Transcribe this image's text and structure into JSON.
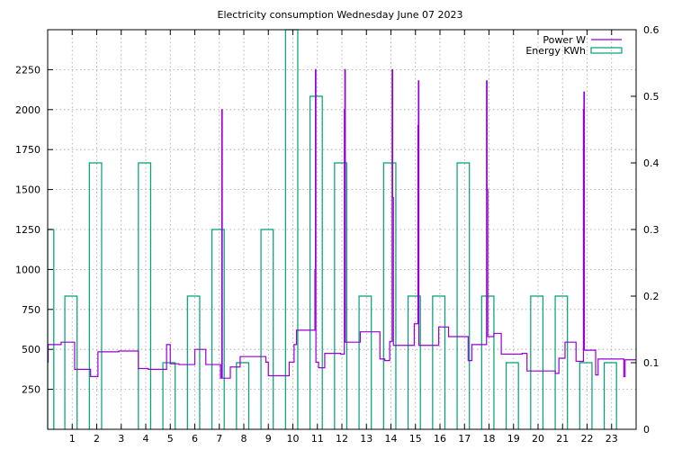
{
  "chart_data": {
    "type": "line",
    "title": "Electricity consumption Wednesday June 07 2023",
    "xlabel": "",
    "ylabel": "",
    "y2label": "",
    "xlim": [
      0,
      24
    ],
    "ylim": [
      0,
      2500
    ],
    "y2lim": [
      0,
      0.6
    ],
    "grid": true,
    "legend_position": "top-right",
    "x_ticks": [
      1,
      2,
      3,
      4,
      5,
      6,
      7,
      8,
      9,
      10,
      11,
      12,
      13,
      14,
      15,
      16,
      17,
      18,
      19,
      20,
      21,
      22,
      23
    ],
    "y_ticks": [
      250,
      500,
      750,
      1000,
      1250,
      1500,
      1750,
      2000,
      2250
    ],
    "y2_ticks": [
      0,
      0.1,
      0.2,
      0.3,
      0.4,
      0.5,
      0.6
    ],
    "series": [
      {
        "name": "Power W",
        "color": "#9400d3",
        "axis": "y",
        "style": "steps",
        "points": [
          [
            0.0,
            420
          ],
          [
            0.02,
            530
          ],
          [
            0.55,
            545
          ],
          [
            1.1,
            375
          ],
          [
            1.75,
            330
          ],
          [
            2.05,
            485
          ],
          [
            2.9,
            490
          ],
          [
            3.7,
            380
          ],
          [
            4.1,
            375
          ],
          [
            4.85,
            530
          ],
          [
            5.0,
            410
          ],
          [
            5.35,
            405
          ],
          [
            6.0,
            500
          ],
          [
            6.45,
            405
          ],
          [
            7.05,
            320
          ],
          [
            7.1,
            2000
          ],
          [
            7.12,
            320
          ],
          [
            7.45,
            390
          ],
          [
            7.85,
            455
          ],
          [
            8.9,
            420
          ],
          [
            9.0,
            335
          ],
          [
            9.85,
            420
          ],
          [
            10.05,
            530
          ],
          [
            10.15,
            620
          ],
          [
            10.9,
            1000
          ],
          [
            10.92,
            2250
          ],
          [
            10.94,
            420
          ],
          [
            11.05,
            385
          ],
          [
            11.3,
            475
          ],
          [
            11.95,
            470
          ],
          [
            12.1,
            2000
          ],
          [
            12.12,
            2250
          ],
          [
            12.14,
            545
          ],
          [
            12.75,
            610
          ],
          [
            13.55,
            440
          ],
          [
            13.75,
            430
          ],
          [
            13.95,
            550
          ],
          [
            14.05,
            2250
          ],
          [
            14.07,
            1450
          ],
          [
            14.1,
            525
          ],
          [
            14.95,
            660
          ],
          [
            15.1,
            1900
          ],
          [
            15.12,
            2180
          ],
          [
            15.14,
            525
          ],
          [
            15.95,
            640
          ],
          [
            16.35,
            580
          ],
          [
            17.15,
            430
          ],
          [
            17.3,
            530
          ],
          [
            17.9,
            2180
          ],
          [
            17.92,
            1500
          ],
          [
            17.95,
            580
          ],
          [
            18.2,
            600
          ],
          [
            18.5,
            470
          ],
          [
            19.35,
            475
          ],
          [
            19.55,
            365
          ],
          [
            20.7,
            350
          ],
          [
            20.85,
            445
          ],
          [
            21.1,
            545
          ],
          [
            21.55,
            425
          ],
          [
            21.85,
            2000
          ],
          [
            21.87,
            2110
          ],
          [
            21.89,
            495
          ],
          [
            22.35,
            340
          ],
          [
            22.45,
            440
          ],
          [
            23.5,
            330
          ],
          [
            23.55,
            435
          ],
          [
            24.0,
            435
          ]
        ]
      },
      {
        "name": "Energy KWh",
        "color": "#009e73",
        "axis": "y2",
        "style": "impulses",
        "bars": [
          {
            "start": 0.0,
            "end": 0.25,
            "value": 0.3
          },
          {
            "start": 0.7,
            "end": 1.2,
            "value": 0.2
          },
          {
            "start": 1.7,
            "end": 2.2,
            "value": 0.4
          },
          {
            "start": 3.7,
            "end": 4.2,
            "value": 0.4
          },
          {
            "start": 4.7,
            "end": 5.2,
            "value": 0.1
          },
          {
            "start": 5.7,
            "end": 6.2,
            "value": 0.2
          },
          {
            "start": 6.7,
            "end": 7.2,
            "value": 0.3
          },
          {
            "start": 7.7,
            "end": 8.2,
            "value": 0.1
          },
          {
            "start": 8.7,
            "end": 9.2,
            "value": 0.3
          },
          {
            "start": 9.7,
            "end": 10.2,
            "value": 0.6
          },
          {
            "start": 10.7,
            "end": 11.2,
            "value": 0.5
          },
          {
            "start": 11.7,
            "end": 12.2,
            "value": 0.4
          },
          {
            "start": 12.7,
            "end": 13.2,
            "value": 0.2
          },
          {
            "start": 13.7,
            "end": 14.2,
            "value": 0.4
          },
          {
            "start": 14.7,
            "end": 15.2,
            "value": 0.2
          },
          {
            "start": 15.7,
            "end": 16.2,
            "value": 0.2
          },
          {
            "start": 16.7,
            "end": 17.2,
            "value": 0.4
          },
          {
            "start": 17.7,
            "end": 18.2,
            "value": 0.2
          },
          {
            "start": 18.7,
            "end": 19.2,
            "value": 0.1
          },
          {
            "start": 19.7,
            "end": 20.2,
            "value": 0.2
          },
          {
            "start": 20.7,
            "end": 21.2,
            "value": 0.2
          },
          {
            "start": 21.7,
            "end": 22.2,
            "value": 0.1
          },
          {
            "start": 22.7,
            "end": 23.2,
            "value": 0.1
          }
        ]
      }
    ]
  }
}
